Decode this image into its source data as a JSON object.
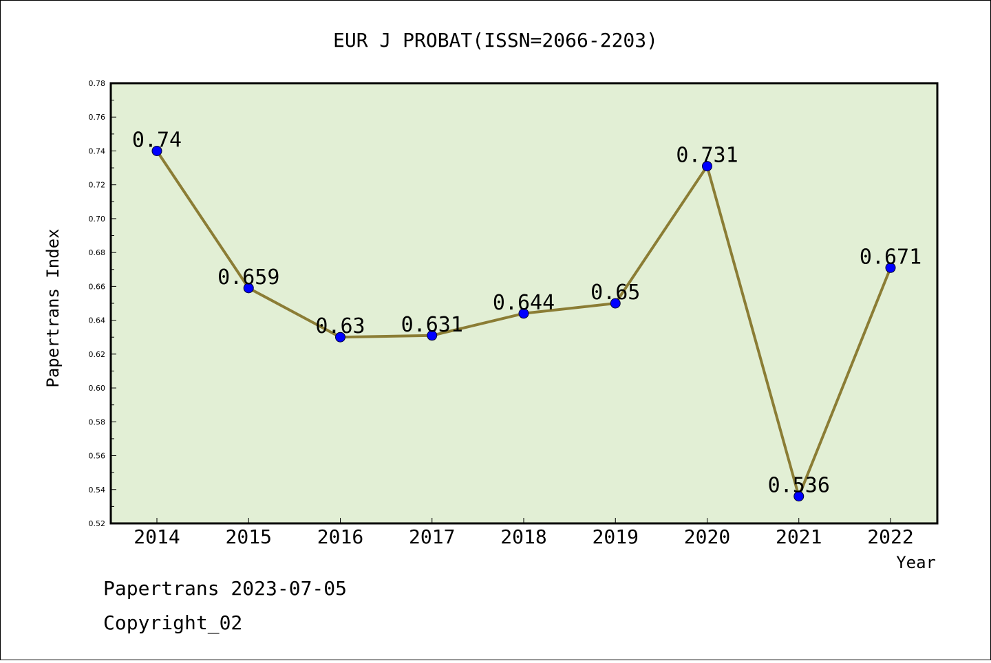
{
  "chart_data": {
    "type": "line",
    "title": "EUR J PROBAT(ISSN=2066-2203)",
    "xlabel": "Year",
    "ylabel": "Papertrans Index",
    "x": [
      "2014",
      "2015",
      "2016",
      "2017",
      "2018",
      "2019",
      "2020",
      "2021",
      "2022"
    ],
    "values": [
      0.74,
      0.659,
      0.63,
      0.631,
      0.644,
      0.65,
      0.731,
      0.536,
      0.671
    ],
    "data_labels": [
      "0.74",
      "0.659",
      "0.63",
      "0.631",
      "0.644",
      "0.65",
      "0.731",
      "0.536",
      "0.671"
    ],
    "ylim": [
      0.52,
      0.78
    ],
    "yticks": [
      "0.52",
      "0.54",
      "0.56",
      "0.58",
      "0.60",
      "0.62",
      "0.64",
      "0.66",
      "0.68",
      "0.70",
      "0.72",
      "0.74",
      "0.76",
      "0.78"
    ],
    "grid": false,
    "legend": "none",
    "colors": {
      "plot_background": "#e2efd5",
      "line": "#8b7d35",
      "marker": "#0000ff"
    }
  },
  "footer": {
    "line1": "Papertrans 2023-07-05",
    "line2": "Copyright_02"
  }
}
